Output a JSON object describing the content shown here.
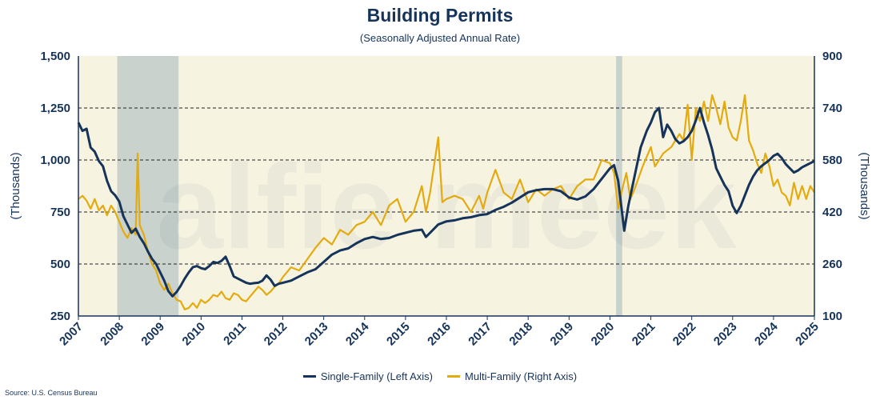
{
  "colors": {
    "plot_bg": "#f7f3e1",
    "recession": "#c9d2cd",
    "single_family": "#16335a",
    "multi_family": "#e3ab0f",
    "axis": "#16335a"
  },
  "chart_data": {
    "type": "line",
    "title": "Building Permits",
    "subtitle": "(Seasonally Adjusted Annual Rate)",
    "ylabel_left": "(Thousands)",
    "ylabel_right": "(Thousands)",
    "source": "Source: U.S. Census Bureau",
    "watermark": "alfie meek",
    "grid": "dashed horizontal",
    "legend_position": "bottom",
    "xlim": [
      2007,
      2025
    ],
    "x_ticks": [
      "2007",
      "2008",
      "2009",
      "2010",
      "2011",
      "2012",
      "2013",
      "2014",
      "2015",
      "2016",
      "2017",
      "2018",
      "2019",
      "2020",
      "2021",
      "2022",
      "2023",
      "2024",
      "2025"
    ],
    "ylim_left": [
      250,
      1500
    ],
    "y_ticks_left": [
      "250",
      "500",
      "750",
      "1,000",
      "1,250",
      "1,500"
    ],
    "ylim_right": [
      100,
      900
    ],
    "y_ticks_right": [
      "100",
      "260",
      "420",
      "580",
      "740",
      "900"
    ],
    "recession_bands": [
      [
        2007.95,
        2009.45
      ],
      [
        2020.15,
        2020.3
      ]
    ],
    "series": [
      {
        "name": "Single-Family (Left Axis)",
        "axis": "left",
        "points": [
          [
            2007.0,
            1180
          ],
          [
            2007.1,
            1140
          ],
          [
            2007.2,
            1150
          ],
          [
            2007.3,
            1060
          ],
          [
            2007.4,
            1040
          ],
          [
            2007.5,
            995
          ],
          [
            2007.6,
            970
          ],
          [
            2007.7,
            900
          ],
          [
            2007.8,
            850
          ],
          [
            2007.9,
            830
          ],
          [
            2008.0,
            800
          ],
          [
            2008.1,
            730
          ],
          [
            2008.2,
            690
          ],
          [
            2008.3,
            650
          ],
          [
            2008.4,
            670
          ],
          [
            2008.5,
            630
          ],
          [
            2008.6,
            600
          ],
          [
            2008.7,
            560
          ],
          [
            2008.8,
            525
          ],
          [
            2008.9,
            500
          ],
          [
            2009.0,
            460
          ],
          [
            2009.1,
            420
          ],
          [
            2009.2,
            370
          ],
          [
            2009.3,
            345
          ],
          [
            2009.4,
            365
          ],
          [
            2009.5,
            395
          ],
          [
            2009.6,
            430
          ],
          [
            2009.7,
            460
          ],
          [
            2009.8,
            485
          ],
          [
            2009.9,
            490
          ],
          [
            2010.0,
            480
          ],
          [
            2010.1,
            475
          ],
          [
            2010.2,
            490
          ],
          [
            2010.3,
            510
          ],
          [
            2010.4,
            505
          ],
          [
            2010.5,
            515
          ],
          [
            2010.6,
            535
          ],
          [
            2010.7,
            490
          ],
          [
            2010.8,
            440
          ],
          [
            2010.9,
            430
          ],
          [
            2011.0,
            420
          ],
          [
            2011.1,
            410
          ],
          [
            2011.2,
            405
          ],
          [
            2011.3,
            408
          ],
          [
            2011.4,
            410
          ],
          [
            2011.5,
            420
          ],
          [
            2011.6,
            445
          ],
          [
            2011.7,
            425
          ],
          [
            2011.8,
            395
          ],
          [
            2011.9,
            405
          ],
          [
            2012.0,
            410
          ],
          [
            2012.2,
            420
          ],
          [
            2012.4,
            440
          ],
          [
            2012.6,
            460
          ],
          [
            2012.8,
            475
          ],
          [
            2013.0,
            510
          ],
          [
            2013.2,
            545
          ],
          [
            2013.4,
            565
          ],
          [
            2013.6,
            575
          ],
          [
            2013.8,
            600
          ],
          [
            2014.0,
            620
          ],
          [
            2014.2,
            630
          ],
          [
            2014.4,
            620
          ],
          [
            2014.6,
            625
          ],
          [
            2014.8,
            640
          ],
          [
            2015.0,
            650
          ],
          [
            2015.2,
            660
          ],
          [
            2015.4,
            665
          ],
          [
            2015.5,
            630
          ],
          [
            2015.6,
            650
          ],
          [
            2015.8,
            690
          ],
          [
            2016.0,
            705
          ],
          [
            2016.2,
            710
          ],
          [
            2016.4,
            720
          ],
          [
            2016.6,
            725
          ],
          [
            2016.8,
            735
          ],
          [
            2017.0,
            740
          ],
          [
            2017.2,
            760
          ],
          [
            2017.4,
            775
          ],
          [
            2017.6,
            795
          ],
          [
            2017.8,
            820
          ],
          [
            2018.0,
            845
          ],
          [
            2018.2,
            855
          ],
          [
            2018.4,
            860
          ],
          [
            2018.6,
            860
          ],
          [
            2018.8,
            850
          ],
          [
            2019.0,
            820
          ],
          [
            2019.2,
            810
          ],
          [
            2019.4,
            825
          ],
          [
            2019.6,
            860
          ],
          [
            2019.8,
            910
          ],
          [
            2020.0,
            960
          ],
          [
            2020.1,
            975
          ],
          [
            2020.2,
            900
          ],
          [
            2020.3,
            740
          ],
          [
            2020.35,
            660
          ],
          [
            2020.45,
            780
          ],
          [
            2020.6,
            920
          ],
          [
            2020.75,
            1060
          ],
          [
            2020.9,
            1140
          ],
          [
            2021.0,
            1180
          ],
          [
            2021.1,
            1230
          ],
          [
            2021.2,
            1250
          ],
          [
            2021.3,
            1110
          ],
          [
            2021.4,
            1170
          ],
          [
            2021.5,
            1140
          ],
          [
            2021.6,
            1100
          ],
          [
            2021.7,
            1080
          ],
          [
            2021.8,
            1090
          ],
          [
            2021.9,
            1110
          ],
          [
            2022.0,
            1140
          ],
          [
            2022.1,
            1190
          ],
          [
            2022.2,
            1250
          ],
          [
            2022.3,
            1180
          ],
          [
            2022.4,
            1120
          ],
          [
            2022.5,
            1050
          ],
          [
            2022.6,
            960
          ],
          [
            2022.7,
            920
          ],
          [
            2022.8,
            880
          ],
          [
            2022.9,
            850
          ],
          [
            2023.0,
            780
          ],
          [
            2023.1,
            745
          ],
          [
            2023.2,
            780
          ],
          [
            2023.3,
            830
          ],
          [
            2023.4,
            880
          ],
          [
            2023.5,
            920
          ],
          [
            2023.6,
            950
          ],
          [
            2023.7,
            970
          ],
          [
            2023.8,
            985
          ],
          [
            2023.9,
            1000
          ],
          [
            2024.0,
            1020
          ],
          [
            2024.1,
            1030
          ],
          [
            2024.2,
            1010
          ],
          [
            2024.3,
            980
          ],
          [
            2024.4,
            960
          ],
          [
            2024.5,
            940
          ],
          [
            2024.6,
            950
          ],
          [
            2024.7,
            965
          ],
          [
            2024.8,
            975
          ],
          [
            2024.9,
            985
          ],
          [
            2025.0,
            995
          ]
        ]
      },
      {
        "name": "Multi-Family (Right Axis)",
        "axis": "right",
        "points": [
          [
            2007.0,
            460
          ],
          [
            2007.1,
            470
          ],
          [
            2007.2,
            455
          ],
          [
            2007.3,
            430
          ],
          [
            2007.4,
            460
          ],
          [
            2007.5,
            425
          ],
          [
            2007.6,
            440
          ],
          [
            2007.7,
            410
          ],
          [
            2007.8,
            440
          ],
          [
            2007.9,
            420
          ],
          [
            2008.0,
            390
          ],
          [
            2008.1,
            360
          ],
          [
            2008.2,
            340
          ],
          [
            2008.3,
            370
          ],
          [
            2008.4,
            350
          ],
          [
            2008.45,
            600
          ],
          [
            2008.5,
            380
          ],
          [
            2008.6,
            350
          ],
          [
            2008.7,
            300
          ],
          [
            2008.8,
            260
          ],
          [
            2008.9,
            240
          ],
          [
            2009.0,
            200
          ],
          [
            2009.1,
            180
          ],
          [
            2009.2,
            200
          ],
          [
            2009.3,
            170
          ],
          [
            2009.4,
            150
          ],
          [
            2009.5,
            145
          ],
          [
            2009.6,
            120
          ],
          [
            2009.7,
            125
          ],
          [
            2009.8,
            140
          ],
          [
            2009.9,
            125
          ],
          [
            2010.0,
            150
          ],
          [
            2010.1,
            140
          ],
          [
            2010.2,
            150
          ],
          [
            2010.3,
            165
          ],
          [
            2010.4,
            160
          ],
          [
            2010.5,
            175
          ],
          [
            2010.6,
            155
          ],
          [
            2010.7,
            150
          ],
          [
            2010.8,
            170
          ],
          [
            2010.9,
            165
          ],
          [
            2011.0,
            150
          ],
          [
            2011.1,
            145
          ],
          [
            2011.2,
            160
          ],
          [
            2011.3,
            175
          ],
          [
            2011.4,
            190
          ],
          [
            2011.5,
            180
          ],
          [
            2011.6,
            165
          ],
          [
            2011.7,
            175
          ],
          [
            2011.8,
            190
          ],
          [
            2011.9,
            200
          ],
          [
            2012.0,
            220
          ],
          [
            2012.2,
            250
          ],
          [
            2012.4,
            240
          ],
          [
            2012.6,
            275
          ],
          [
            2012.8,
            310
          ],
          [
            2013.0,
            340
          ],
          [
            2013.2,
            320
          ],
          [
            2013.4,
            365
          ],
          [
            2013.6,
            350
          ],
          [
            2013.8,
            380
          ],
          [
            2014.0,
            390
          ],
          [
            2014.2,
            420
          ],
          [
            2014.4,
            380
          ],
          [
            2014.6,
            440
          ],
          [
            2014.8,
            460
          ],
          [
            2015.0,
            390
          ],
          [
            2015.2,
            420
          ],
          [
            2015.4,
            500
          ],
          [
            2015.5,
            420
          ],
          [
            2015.6,
            480
          ],
          [
            2015.8,
            650
          ],
          [
            2015.9,
            450
          ],
          [
            2016.0,
            460
          ],
          [
            2016.2,
            470
          ],
          [
            2016.4,
            460
          ],
          [
            2016.6,
            420
          ],
          [
            2016.8,
            470
          ],
          [
            2016.9,
            430
          ],
          [
            2017.0,
            480
          ],
          [
            2017.2,
            550
          ],
          [
            2017.4,
            480
          ],
          [
            2017.6,
            460
          ],
          [
            2017.8,
            520
          ],
          [
            2018.0,
            450
          ],
          [
            2018.2,
            490
          ],
          [
            2018.4,
            470
          ],
          [
            2018.6,
            490
          ],
          [
            2018.8,
            500
          ],
          [
            2019.0,
            460
          ],
          [
            2019.2,
            500
          ],
          [
            2019.4,
            520
          ],
          [
            2019.6,
            520
          ],
          [
            2019.8,
            580
          ],
          [
            2020.0,
            570
          ],
          [
            2020.1,
            540
          ],
          [
            2020.2,
            430
          ],
          [
            2020.3,
            490
          ],
          [
            2020.4,
            540
          ],
          [
            2020.5,
            460
          ],
          [
            2020.6,
            490
          ],
          [
            2020.8,
            560
          ],
          [
            2021.0,
            620
          ],
          [
            2021.1,
            560
          ],
          [
            2021.3,
            600
          ],
          [
            2021.5,
            620
          ],
          [
            2021.7,
            660
          ],
          [
            2021.8,
            640
          ],
          [
            2021.9,
            750
          ],
          [
            2022.0,
            580
          ],
          [
            2022.1,
            740
          ],
          [
            2022.2,
            700
          ],
          [
            2022.3,
            760
          ],
          [
            2022.4,
            700
          ],
          [
            2022.5,
            780
          ],
          [
            2022.6,
            740
          ],
          [
            2022.7,
            690
          ],
          [
            2022.8,
            760
          ],
          [
            2022.9,
            680
          ],
          [
            2023.0,
            650
          ],
          [
            2023.1,
            640
          ],
          [
            2023.2,
            700
          ],
          [
            2023.3,
            780
          ],
          [
            2023.4,
            640
          ],
          [
            2023.5,
            610
          ],
          [
            2023.6,
            570
          ],
          [
            2023.7,
            540
          ],
          [
            2023.8,
            600
          ],
          [
            2023.9,
            560
          ],
          [
            2023.95,
            530
          ],
          [
            2024.0,
            500
          ],
          [
            2024.1,
            520
          ],
          [
            2024.2,
            480
          ],
          [
            2024.3,
            470
          ],
          [
            2024.4,
            440
          ],
          [
            2024.5,
            510
          ],
          [
            2024.6,
            460
          ],
          [
            2024.7,
            500
          ],
          [
            2024.8,
            460
          ],
          [
            2024.9,
            500
          ],
          [
            2025.0,
            480
          ]
        ]
      }
    ]
  }
}
